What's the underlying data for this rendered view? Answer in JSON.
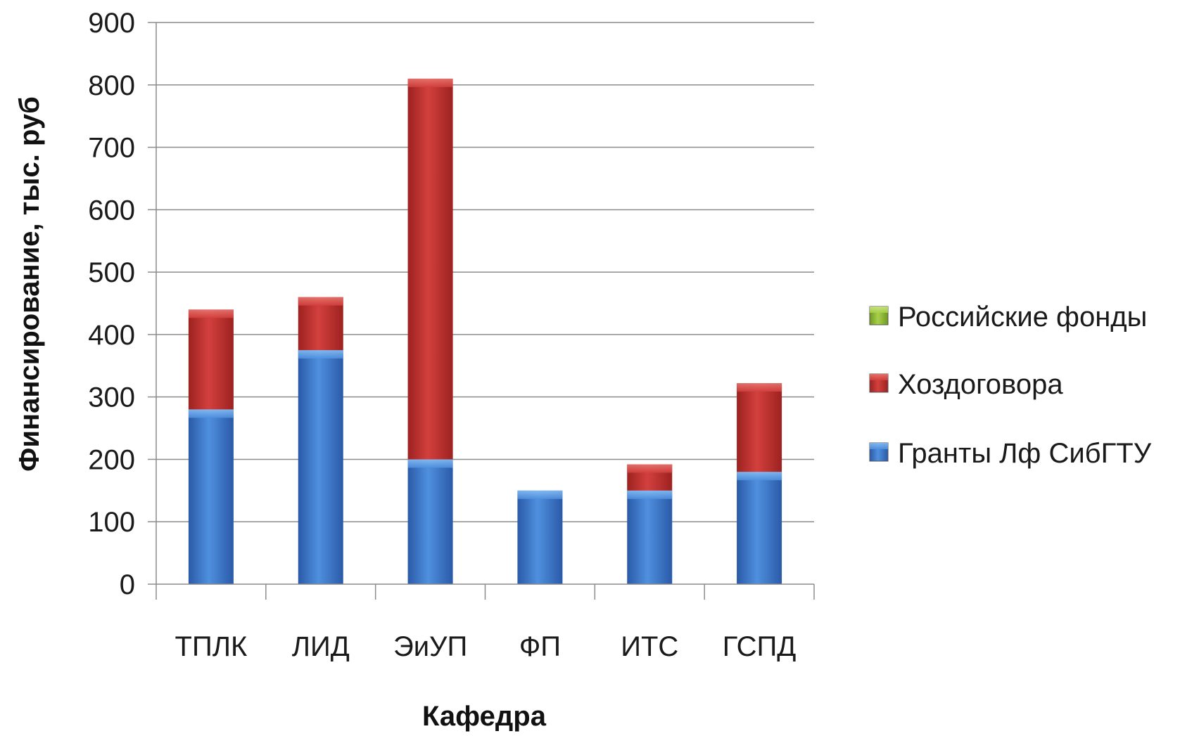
{
  "chart_data": {
    "type": "bar",
    "stacked": true,
    "categories": [
      "ТПЛК",
      "ЛИД",
      "ЭиУП",
      "ФП",
      "ИТС",
      "ГСПД"
    ],
    "series": [
      {
        "name": "Гранты Лф СибГТУ",
        "values": [
          280,
          375,
          200,
          150,
          150,
          180
        ],
        "color": "#3f7fd0"
      },
      {
        "name": "Хоздоговора",
        "values": [
          160,
          85,
          610,
          0,
          42,
          142
        ],
        "color": "#c0302e"
      },
      {
        "name": "Российские фонды",
        "values": [
          0,
          0,
          0,
          0,
          0,
          0
        ],
        "color": "#8fb83a"
      }
    ],
    "xlabel": "Кафедра",
    "ylabel": "Финансирование, тыс. руб",
    "ylim": [
      0,
      900
    ],
    "yticks": [
      0,
      100,
      200,
      300,
      400,
      500,
      600,
      700,
      800,
      900
    ],
    "grid": true,
    "legend_position": "right",
    "legend_order": [
      "Российские фонды",
      "Хоздоговора",
      "Гранты Лф СибГТУ"
    ]
  }
}
